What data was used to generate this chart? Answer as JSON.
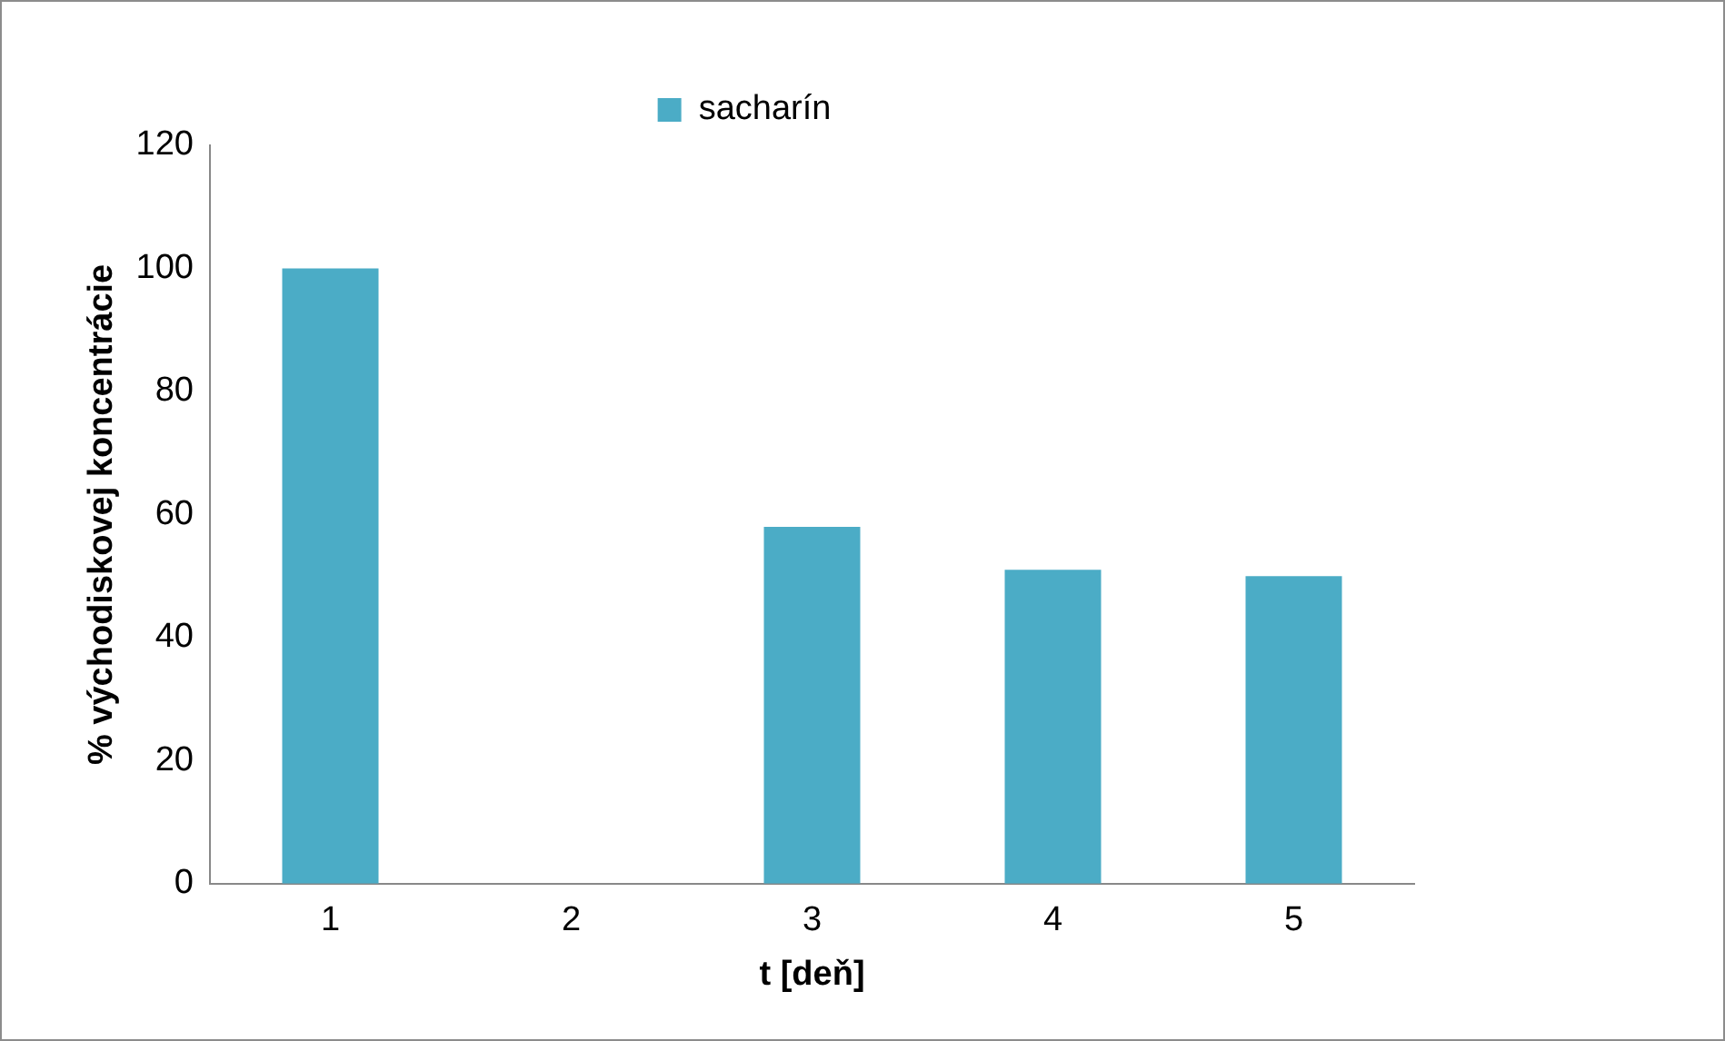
{
  "chart_data": {
    "type": "bar",
    "xlabel": "t [deň]",
    "ylabel": "% východiskovej koncentrácie",
    "categories": [
      "1",
      "2",
      "3",
      "4",
      "5"
    ],
    "series": [
      {
        "name": "sacharín",
        "color": "#4bacc6",
        "values": [
          100,
          null,
          58,
          51,
          50
        ]
      }
    ],
    "ylim": [
      0,
      120
    ],
    "yticks": [
      0,
      20,
      40,
      60,
      80,
      100,
      120
    ],
    "grid": false,
    "legend": "top"
  }
}
